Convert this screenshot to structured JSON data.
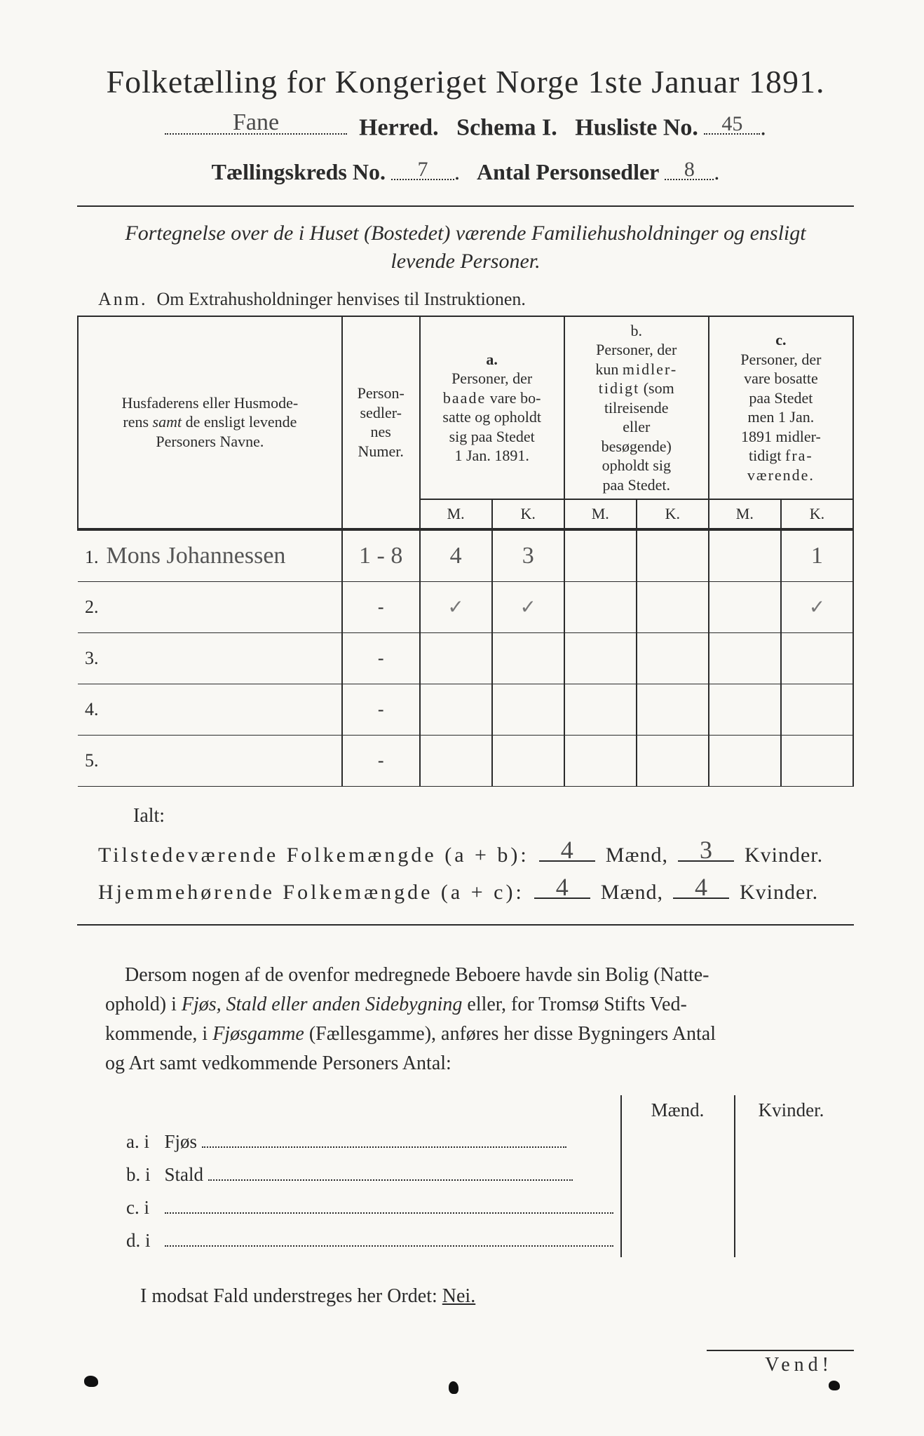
{
  "title": "Folketælling for Kongeriget Norge 1ste Januar 1891.",
  "line2": {
    "herred_value": "Fane",
    "herred_label": "Herred.",
    "schema_label": "Schema I.",
    "husliste_label": "Husliste No.",
    "husliste_value": "45"
  },
  "line3": {
    "kreds_label": "Tællingskreds No.",
    "kreds_value": "7",
    "antal_label": "Antal Personsedler",
    "antal_value": "8"
  },
  "subtitle": "Fortegnelse over de i Huset (Bostedet) værende Familiehusholdninger og ensligt levende Personer.",
  "anm_label": "Anm.",
  "anm_text": "Om Extrahusholdninger henvises til Instruktionen.",
  "headers": {
    "name": "Husfaderens eller Husmoderens samt de ensligt levende Personers Navne.",
    "num": "Person-sedler-nes Numer.",
    "a_label": "a.",
    "a_text": "Personer, der baade vare bosatte og opholdt sig paa Stedet 1 Jan. 1891.",
    "b_label": "b.",
    "b_text": "Personer, der kun midlertidigt (som tilreisende eller besøgende) opholdt sig paa Stedet.",
    "c_label": "c.",
    "c_text": "Personer, der vare bosatte paa Stedet men 1 Jan. 1891 midlertidigt fraværende.",
    "M": "M.",
    "K": "K."
  },
  "rows": [
    {
      "n": "1.",
      "name": "Mons Johannessen",
      "num": "1 - 8",
      "aM": "4",
      "aK": "3",
      "bM": "",
      "bK": "",
      "cM": "",
      "cK": "1"
    },
    {
      "n": "2.",
      "name": "",
      "num": "-",
      "aM": "✓",
      "aK": "✓",
      "bM": "",
      "bK": "",
      "cM": "",
      "cK": "✓"
    },
    {
      "n": "3.",
      "name": "",
      "num": "-",
      "aM": "",
      "aK": "",
      "bM": "",
      "bK": "",
      "cM": "",
      "cK": ""
    },
    {
      "n": "4.",
      "name": "",
      "num": "-",
      "aM": "",
      "aK": "",
      "bM": "",
      "bK": "",
      "cM": "",
      "cK": ""
    },
    {
      "n": "5.",
      "name": "",
      "num": "-",
      "aM": "",
      "aK": "",
      "bM": "",
      "bK": "",
      "cM": "",
      "cK": ""
    }
  ],
  "ialt": "Ialt:",
  "sum1": {
    "label": "Tilstedeværende Folkemængde (a + b):",
    "m": "4",
    "m_label": "Mænd,",
    "k": "3",
    "k_label": "Kvinder."
  },
  "sum2": {
    "label": "Hjemmehørende Folkemængde (a + c):",
    "m": "4",
    "m_label": "Mænd,",
    "k": "4",
    "k_label": "Kvinder."
  },
  "para": "Dersom nogen af de ovenfor medregnede Beboere havde sin Bolig (Natteophold) i Fjøs, Stald eller anden Sidebygning eller, for Tromsø Stifts Vedkommende, i Fjøsgamme (Fællesgamme), anføres her disse Bygningers Antal og Art samt vedkommende Personers Antal:",
  "bottom": {
    "head_m": "Mænd.",
    "head_k": "Kvinder.",
    "a": "a.  i",
    "a_text": "Fjøs",
    "b": "b.  i",
    "b_text": "Stald",
    "c": "c.  i",
    "d": "d.  i"
  },
  "nei_line": "I modsat Fald understreges her Ordet:",
  "nei": "Nei.",
  "vend": "Vend!"
}
